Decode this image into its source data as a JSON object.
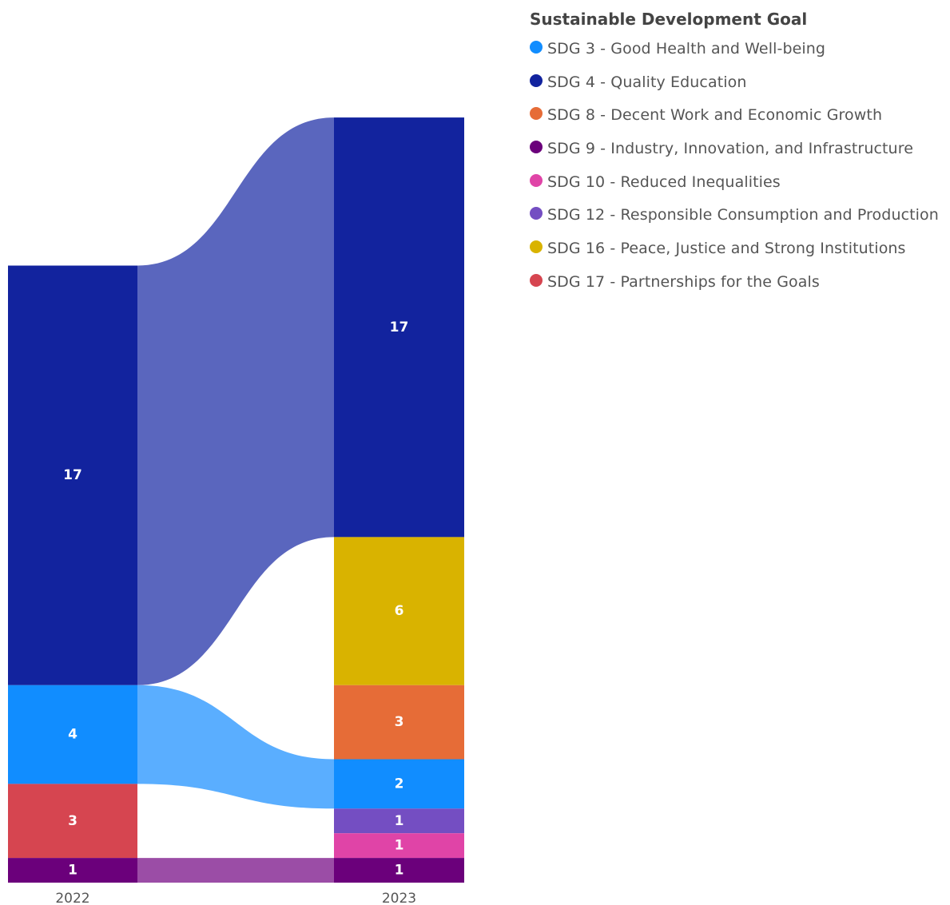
{
  "legend": {
    "title": "Sustainable Development Goal",
    "items": [
      {
        "label": "SDG 3 - Good Health and Well-being",
        "color": "#118DFF",
        "icon": "circle-marker"
      },
      {
        "label": "SDG 4 - Quality Education",
        "color": "#12239E",
        "icon": "circle-marker"
      },
      {
        "label": "SDG 8 - Decent Work and Economic Growth",
        "color": "#E66C37",
        "icon": "circle-marker"
      },
      {
        "label": "SDG 9 - Industry, Innovation, and Infrastructure",
        "color": "#6B007B",
        "icon": "circle-marker"
      },
      {
        "label": "SDG 10 - Reduced Inequalities",
        "color": "#E044A7",
        "icon": "circle-marker"
      },
      {
        "label": "SDG 12 - Responsible Consumption and Production",
        "color": "#744EC2",
        "icon": "circle-marker"
      },
      {
        "label": "SDG 16 - Peace, Justice and Strong Institutions",
        "color": "#D9B300",
        "icon": "circle-marker"
      },
      {
        "label": "SDG 17 - Partnerships for the Goals",
        "color": "#D64550",
        "icon": "circle-marker"
      }
    ]
  },
  "chart_data": {
    "type": "ribbon",
    "x": [
      "2022",
      "2023"
    ],
    "stacks": [
      {
        "year": "2022",
        "segments": [
          {
            "series": "SDG 4 - Quality Education",
            "value": 17
          },
          {
            "series": "SDG 3 - Good Health and Well-being",
            "value": 4
          },
          {
            "series": "SDG 17 - Partnerships for the Goals",
            "value": 3
          },
          {
            "series": "SDG 9 - Industry, Innovation, and Infrastructure",
            "value": 1
          }
        ]
      },
      {
        "year": "2023",
        "segments": [
          {
            "series": "SDG 4 - Quality Education",
            "value": 17
          },
          {
            "series": "SDG 16 - Peace, Justice and Strong Institutions",
            "value": 6
          },
          {
            "series": "SDG 8 - Decent Work and Economic Growth",
            "value": 3
          },
          {
            "series": "SDG 3 - Good Health and Well-being",
            "value": 2
          },
          {
            "series": "SDG 12 - Responsible Consumption and Production",
            "value": 1
          },
          {
            "series": "SDG 10 - Reduced Inequalities",
            "value": 1
          },
          {
            "series": "SDG 9 - Industry, Innovation, and Infrastructure",
            "value": 1
          }
        ]
      }
    ],
    "ribbons": [
      {
        "series": "SDG 4 - Quality Education",
        "color": "#5A66BE"
      },
      {
        "series": "SDG 3 - Good Health and Well-being",
        "color": "#5AAEFF"
      },
      {
        "series": "SDG 9 - Industry, Innovation, and Infrastructure",
        "color": "#9B4DA6"
      }
    ]
  }
}
